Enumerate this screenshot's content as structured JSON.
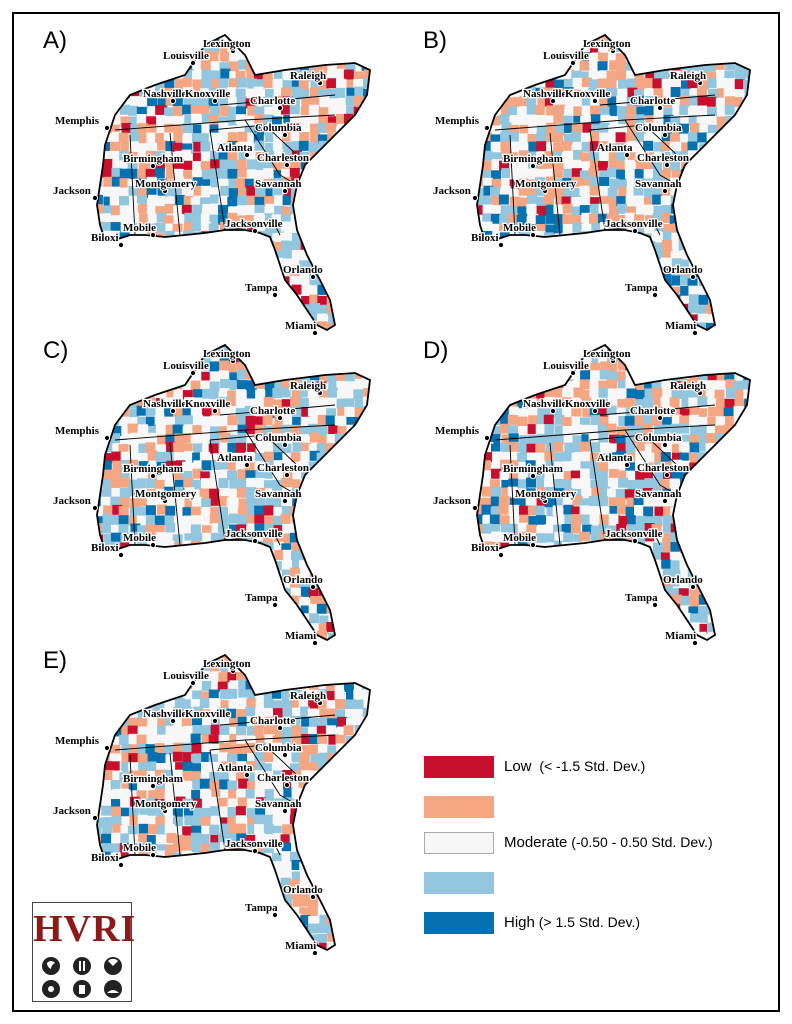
{
  "figure": {
    "panels": [
      {
        "id": "A",
        "label": "A)"
      },
      {
        "id": "B",
        "label": "B)"
      },
      {
        "id": "C",
        "label": "C)"
      },
      {
        "id": "D",
        "label": "D)"
      },
      {
        "id": "E",
        "label": "E)"
      }
    ],
    "cities": {
      "lexington": "Lexington",
      "louisville": "Louisville",
      "nashville": "Nashville",
      "knoxville": "Knoxville",
      "raleigh": "Raleigh",
      "charlotte": "Charlotte",
      "memphis": "Memphis",
      "columbia": "Columbia",
      "atlanta": "Atlanta",
      "birmingham": "Birmingham",
      "charleston": "Charleston",
      "montgomery": "Montgomery",
      "savannah": "Savannah",
      "jackson": "Jackson",
      "mobile": "Mobile",
      "jacksonville": "Jacksonville",
      "biloxi": "Biloxi",
      "orlando": "Orlando",
      "tampa": "Tampa",
      "miami": "Miami"
    },
    "legend": [
      {
        "color": "#c8102e",
        "label": "Low",
        "detail": "(< -1.5 Std. Dev.)"
      },
      {
        "color": "#f4a582",
        "label": "",
        "detail": ""
      },
      {
        "color": "#f7f7f7",
        "label": "Moderate",
        "detail": "(-0.50 - 0.50 Std. Dev.)"
      },
      {
        "color": "#92c5de",
        "label": "",
        "detail": ""
      },
      {
        "color": "#0571b0",
        "label": "High",
        "detail": "(> 1.5 Std. Dev.)"
      }
    ],
    "logo": {
      "text": "HVRI"
    }
  }
}
